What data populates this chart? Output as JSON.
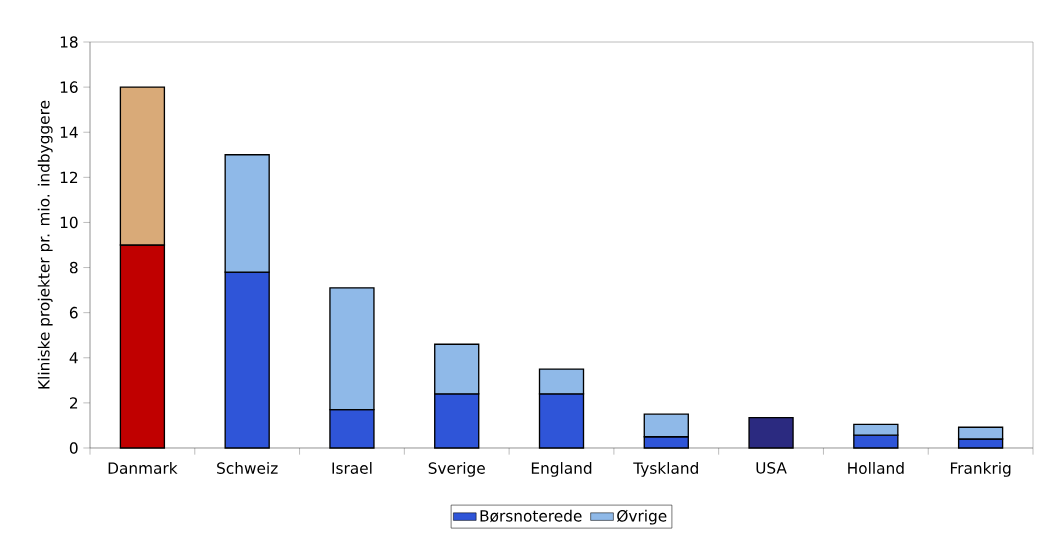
{
  "chart_data": {
    "type": "bar",
    "stacked": true,
    "categories": [
      "Danmark",
      "Schweiz",
      "Israel",
      "Sverige",
      "England",
      "Tyskland",
      "USA",
      "Holland",
      "Frankrig"
    ],
    "ylabel": "Kliniske projekter pr. mio. indbyggere",
    "series": [
      {
        "name": "Børsnoterede",
        "color": "#2f55d8",
        "colors": [
          "#c00000",
          "#2f55d8",
          "#2f55d8",
          "#2f55d8",
          "#2f55d8",
          "#2f55d8",
          "#2b2a80",
          "#2f55d8",
          "#2f55d8"
        ],
        "values": [
          9.0,
          7.8,
          1.7,
          2.4,
          2.4,
          0.5,
          1.35,
          0.57,
          0.4
        ]
      },
      {
        "name": "Øvrige",
        "color": "#8fb9e8",
        "colors": [
          "#d9aa78",
          "#8fb9e8",
          "#8fb9e8",
          "#8fb9e8",
          "#8fb9e8",
          "#8fb9e8",
          "#8fb9e8",
          "#8fb9e8",
          "#8fb9e8"
        ],
        "values": [
          7.0,
          5.2,
          5.4,
          2.2,
          1.1,
          1.0,
          null,
          0.48,
          0.52
        ]
      }
    ],
    "ylim": [
      0,
      18
    ],
    "yticks": [
      0,
      2,
      4,
      6,
      8,
      10,
      12,
      14,
      16,
      18
    ],
    "legend": "bottom"
  }
}
